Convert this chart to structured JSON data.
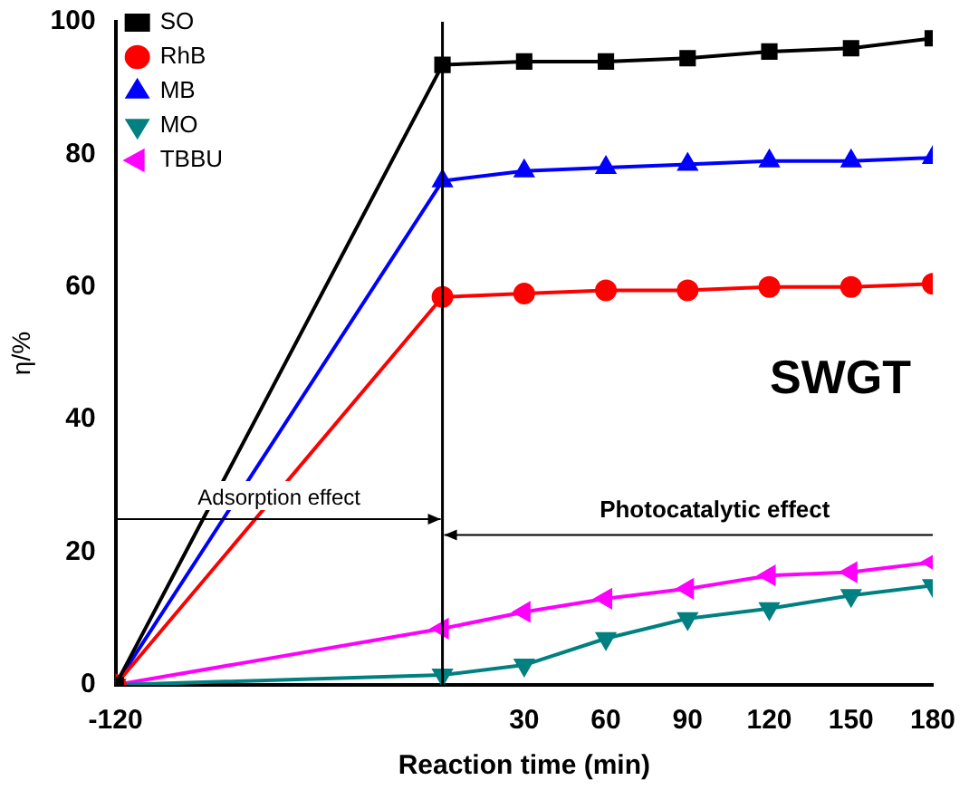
{
  "chart_data": {
    "type": "line",
    "xlabel": "Reaction time (min)",
    "ylabel": "η/%",
    "x": [
      -120,
      0,
      30,
      60,
      90,
      120,
      150,
      180
    ],
    "series": [
      {
        "name": "SO",
        "color": "#000000",
        "marker": "square",
        "values": [
          0,
          93.5,
          94,
          94,
          94.5,
          95.5,
          96,
          97.5
        ]
      },
      {
        "name": "RhB",
        "color": "#ff0000",
        "marker": "circle",
        "values": [
          0,
          58.5,
          59,
          59.5,
          59.5,
          60,
          60,
          60.5
        ]
      },
      {
        "name": "MB",
        "color": "#0000ff",
        "marker": "triangle",
        "values": [
          0,
          76,
          77.5,
          78,
          78.5,
          79,
          79,
          79.5
        ]
      },
      {
        "name": "MO",
        "color": "#008080",
        "marker": "triangle-down",
        "values": [
          0,
          1.5,
          3,
          7,
          10,
          11.5,
          13.5,
          15
        ]
      },
      {
        "name": "TBBU",
        "color": "#ff00ff",
        "marker": "triangle-left",
        "values": [
          0,
          8.5,
          11,
          13,
          14.5,
          16.5,
          17,
          18.5
        ]
      }
    ],
    "xlim": [
      -120,
      180
    ],
    "xticks": [
      -120,
      30,
      60,
      90,
      120,
      150,
      180
    ],
    "ylim": [
      0,
      100
    ],
    "yticks": [
      0,
      20,
      40,
      60,
      80,
      100
    ],
    "ref_lines": [
      {
        "axis": "x",
        "value": 0
      }
    ],
    "annotations": [
      "Adsorption effect",
      "Photocatalytic effect",
      "SWGT"
    ],
    "legend": "top left",
    "grid": false
  }
}
